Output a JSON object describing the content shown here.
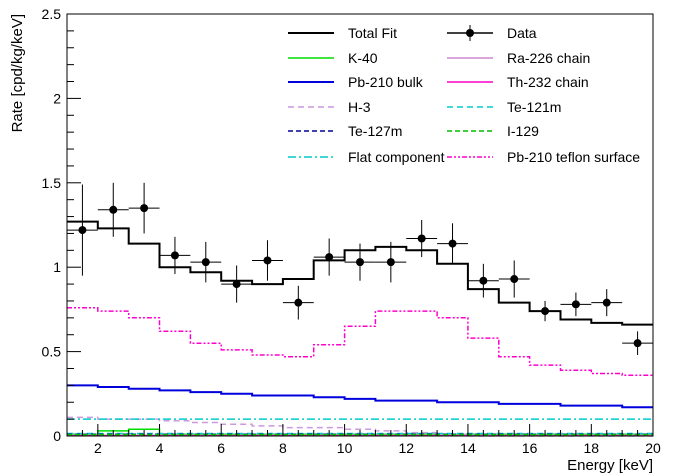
{
  "chart_data": {
    "type": "line",
    "title": "",
    "xlabel": "Energy [keV]",
    "ylabel": "Rate [cpd/kg/keV]",
    "xlim": [
      1,
      20
    ],
    "ylim": [
      0,
      2.5
    ],
    "x_ticks": [
      2,
      4,
      6,
      8,
      10,
      12,
      14,
      16,
      18,
      20
    ],
    "x_tick_labels": [
      "2",
      "4",
      "6",
      "8",
      "10",
      "12",
      "14",
      "16",
      "18",
      "20"
    ],
    "y_ticks": [
      0,
      0.5,
      1,
      1.5,
      2,
      2.5
    ],
    "y_tick_labels": [
      "0",
      "0.5",
      "1",
      "1.5",
      "2",
      "2.5"
    ],
    "grid": false,
    "legend_position": "top-right",
    "bin_edges": [
      1,
      2,
      3,
      4,
      5,
      6,
      7,
      8,
      9,
      10,
      11,
      12,
      13,
      14,
      15,
      16,
      17,
      18,
      19,
      20
    ],
    "series": [
      {
        "name": "Total Fit",
        "color": "#000000",
        "dash": "solid",
        "width": 2,
        "values": [
          1.27,
          1.23,
          1.14,
          1.0,
          0.97,
          0.92,
          0.9,
          0.93,
          1.04,
          1.1,
          1.12,
          1.1,
          1.02,
          0.87,
          0.79,
          0.74,
          0.69,
          0.67,
          0.66
        ]
      },
      {
        "name": "K-40",
        "color": "#00dd00",
        "dash": "solid",
        "width": 1.5,
        "values": [
          0.01,
          0.03,
          0.04,
          0.01,
          0.01,
          0.01,
          0.01,
          0.01,
          0.01,
          0.01,
          0.01,
          0.01,
          0.01,
          0.01,
          0.01,
          0.01,
          0.01,
          0.01,
          0.01
        ]
      },
      {
        "name": "Ra-226 chain",
        "color": "#cc88cc",
        "dash": "solid",
        "width": 1.5,
        "values": [
          0.005,
          0.005,
          0.005,
          0.005,
          0.005,
          0.005,
          0.005,
          0.005,
          0.005,
          0.005,
          0.005,
          0.005,
          0.005,
          0.005,
          0.005,
          0.005,
          0.005,
          0.005,
          0.005
        ]
      },
      {
        "name": "Pb-210 bulk",
        "color": "#0000dd",
        "dash": "solid",
        "width": 2,
        "values": [
          0.3,
          0.29,
          0.28,
          0.27,
          0.26,
          0.25,
          0.24,
          0.24,
          0.23,
          0.22,
          0.21,
          0.21,
          0.2,
          0.2,
          0.19,
          0.19,
          0.18,
          0.18,
          0.17
        ]
      },
      {
        "name": "Th-232 chain",
        "color": "#ff00cc",
        "dash": "solid",
        "width": 1.5,
        "values": [
          0.002,
          0.002,
          0.002,
          0.002,
          0.002,
          0.002,
          0.002,
          0.002,
          0.002,
          0.002,
          0.002,
          0.002,
          0.002,
          0.002,
          0.002,
          0.002,
          0.002,
          0.002,
          0.002
        ]
      },
      {
        "name": "H-3",
        "color": "#cc99dd",
        "dash": "6,4",
        "width": 1.5,
        "values": [
          0.11,
          0.1,
          0.1,
          0.09,
          0.08,
          0.07,
          0.06,
          0.05,
          0.05,
          0.04,
          0.03,
          0.02,
          0.01,
          0.0,
          0.0,
          0.0,
          0.0,
          0.0,
          0.0
        ]
      },
      {
        "name": "Te-121m",
        "color": "#00cccc",
        "dash": "6,4",
        "width": 1.5,
        "values": [
          0.015,
          0.015,
          0.015,
          0.015,
          0.015,
          0.015,
          0.015,
          0.015,
          0.015,
          0.015,
          0.015,
          0.015,
          0.015,
          0.015,
          0.015,
          0.015,
          0.015,
          0.015,
          0.015
        ]
      },
      {
        "name": "Te-127m",
        "color": "#000099",
        "dash": "5,3",
        "width": 1.5,
        "values": [
          0.01,
          0.01,
          0.01,
          0.01,
          0.01,
          0.01,
          0.01,
          0.01,
          0.01,
          0.01,
          0.01,
          0.01,
          0.01,
          0.01,
          0.01,
          0.01,
          0.01,
          0.01,
          0.01
        ]
      },
      {
        "name": "I-129",
        "color": "#00bb00",
        "dash": "5,3",
        "width": 1.5,
        "values": [
          0.008,
          0.008,
          0.008,
          0.008,
          0.008,
          0.008,
          0.008,
          0.008,
          0.008,
          0.008,
          0.008,
          0.008,
          0.008,
          0.008,
          0.008,
          0.008,
          0.008,
          0.008,
          0.008
        ]
      },
      {
        "name": "Flat component",
        "color": "#00cccc",
        "dash": "8,3,2,3",
        "width": 1.5,
        "values": [
          0.1,
          0.1,
          0.1,
          0.1,
          0.1,
          0.1,
          0.1,
          0.1,
          0.1,
          0.1,
          0.1,
          0.1,
          0.1,
          0.1,
          0.1,
          0.1,
          0.1,
          0.1,
          0.1
        ]
      },
      {
        "name": "Pb-210 teflon surface",
        "color": "#ff00cc",
        "dash": "5,2,2,2,2,2",
        "width": 1.5,
        "values": [
          0.76,
          0.74,
          0.7,
          0.62,
          0.55,
          0.51,
          0.48,
          0.47,
          0.54,
          0.65,
          0.74,
          0.74,
          0.7,
          0.58,
          0.47,
          0.42,
          0.39,
          0.37,
          0.36
        ]
      }
    ],
    "data_points": {
      "name": "Data",
      "color": "#000000",
      "x_err": 0.5,
      "points": [
        {
          "x": 1.5,
          "y": 1.22,
          "err": 0.27
        },
        {
          "x": 2.5,
          "y": 1.34,
          "err": 0.16
        },
        {
          "x": 3.5,
          "y": 1.35,
          "err": 0.15
        },
        {
          "x": 4.5,
          "y": 1.07,
          "err": 0.11
        },
        {
          "x": 5.5,
          "y": 1.03,
          "err": 0.12
        },
        {
          "x": 6.5,
          "y": 0.9,
          "err": 0.11
        },
        {
          "x": 7.5,
          "y": 1.04,
          "err": 0.12
        },
        {
          "x": 8.5,
          "y": 0.79,
          "err": 0.1
        },
        {
          "x": 9.5,
          "y": 1.06,
          "err": 0.11
        },
        {
          "x": 10.5,
          "y": 1.03,
          "err": 0.11
        },
        {
          "x": 11.5,
          "y": 1.03,
          "err": 0.12
        },
        {
          "x": 12.5,
          "y": 1.17,
          "err": 0.11
        },
        {
          "x": 13.5,
          "y": 1.14,
          "err": 0.12
        },
        {
          "x": 14.5,
          "y": 0.92,
          "err": 0.1
        },
        {
          "x": 15.5,
          "y": 0.93,
          "err": 0.11
        },
        {
          "x": 16.5,
          "y": 0.74,
          "err": 0.06
        },
        {
          "x": 17.5,
          "y": 0.78,
          "err": 0.07
        },
        {
          "x": 18.5,
          "y": 0.79,
          "err": 0.08
        },
        {
          "x": 19.5,
          "y": 0.55,
          "err": 0.07
        }
      ]
    },
    "legend_order": [
      "Total Fit",
      "Data",
      "K-40",
      "Ra-226 chain",
      "Pb-210 bulk",
      "Th-232 chain",
      "H-3",
      "Te-121m",
      "Te-127m",
      "I-129",
      "Flat component",
      "Pb-210 teflon surface"
    ]
  }
}
